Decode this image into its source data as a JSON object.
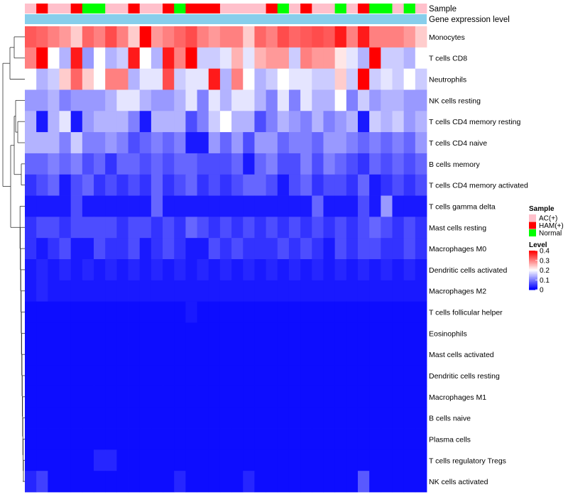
{
  "chart_data": {
    "type": "heatmap",
    "title": "",
    "annotation_labels": {
      "sample": "Sample",
      "gene": "Gene expression level"
    },
    "sample_legend": {
      "title": "Sample",
      "entries": [
        {
          "label": "AC(+)",
          "color": "#FFC0CB"
        },
        {
          "label": "HAM(+)",
          "color": "#FF0000"
        },
        {
          "label": "Normal",
          "color": "#00FF00"
        }
      ]
    },
    "level_legend": {
      "title": "Level",
      "ticks": [
        0.4,
        0.3,
        0.2,
        0.1,
        0
      ],
      "tick_labels": [
        "0.4",
        "0.3",
        "0.2",
        "0.1",
        "0"
      ],
      "min": 0,
      "max": 0.4
    },
    "colors": {
      "low": "#0000FF",
      "mid": "#FFFFFF",
      "high": "#FF0000",
      "gene_band": "#87CEEB"
    },
    "sample_groups": [
      "AC(+)",
      "HAM(+)",
      "AC(+)",
      "AC(+)",
      "HAM(+)",
      "Normal",
      "Normal",
      "AC(+)",
      "AC(+)",
      "HAM(+)",
      "AC(+)",
      "AC(+)",
      "HAM(+)",
      "Normal",
      "HAM(+)",
      "HAM(+)",
      "HAM(+)",
      "AC(+)",
      "AC(+)",
      "AC(+)",
      "AC(+)",
      "HAM(+)",
      "Normal",
      "AC(+)",
      "HAM(+)",
      "AC(+)",
      "AC(+)",
      "Normal",
      "AC(+)",
      "HAM(+)",
      "Normal",
      "Normal",
      "AC(+)",
      "Normal",
      "AC(+)"
    ],
    "rows": [
      {
        "name": "Monocytes",
        "values": [
          0.33,
          0.32,
          0.3,
          0.28,
          0.24,
          0.32,
          0.3,
          0.34,
          0.3,
          0.24,
          0.4,
          0.28,
          0.3,
          0.32,
          0.34,
          0.3,
          0.28,
          0.3,
          0.3,
          0.24,
          0.32,
          0.3,
          0.34,
          0.32,
          0.33,
          0.34,
          0.33,
          0.38,
          0.3,
          0.38,
          0.3,
          0.3,
          0.3,
          0.28,
          0.24
        ]
      },
      {
        "name": "T cells CD8",
        "values": [
          0.3,
          0.4,
          0.2,
          0.14,
          0.38,
          0.12,
          0.2,
          0.14,
          0.16,
          0.38,
          0.2,
          0.14,
          0.38,
          0.3,
          0.4,
          0.16,
          0.16,
          0.18,
          0.26,
          0.18,
          0.26,
          0.28,
          0.28,
          0.16,
          0.3,
          0.28,
          0.28,
          0.22,
          0.18,
          0.14,
          0.4,
          0.16,
          0.16,
          0.14,
          0.2
        ]
      },
      {
        "name": "Neutrophils",
        "values": [
          0.2,
          0.14,
          0.16,
          0.24,
          0.32,
          0.24,
          0.2,
          0.3,
          0.3,
          0.14,
          0.18,
          0.18,
          0.34,
          0.16,
          0.18,
          0.18,
          0.38,
          0.14,
          0.3,
          0.2,
          0.14,
          0.16,
          0.2,
          0.18,
          0.18,
          0.16,
          0.16,
          0.24,
          0.16,
          0.4,
          0.16,
          0.18,
          0.16,
          0.2,
          0.16
        ]
      },
      {
        "name": "NK cells resting",
        "values": [
          0.12,
          0.12,
          0.14,
          0.1,
          0.12,
          0.12,
          0.12,
          0.14,
          0.18,
          0.18,
          0.14,
          0.12,
          0.12,
          0.14,
          0.18,
          0.1,
          0.18,
          0.14,
          0.18,
          0.18,
          0.14,
          0.1,
          0.18,
          0.1,
          0.18,
          0.14,
          0.14,
          0.2,
          0.1,
          0.16,
          0.12,
          0.14,
          0.14,
          0.12,
          0.12
        ]
      },
      {
        "name": "T cells CD4 memory resting",
        "values": [
          0.14,
          0.02,
          0.14,
          0.18,
          0.02,
          0.12,
          0.14,
          0.14,
          0.14,
          0.1,
          0.02,
          0.14,
          0.14,
          0.14,
          0.06,
          0.1,
          0.16,
          0.2,
          0.14,
          0.14,
          0.06,
          0.1,
          0.14,
          0.12,
          0.1,
          0.14,
          0.1,
          0.12,
          0.14,
          0.02,
          0.16,
          0.14,
          0.16,
          0.12,
          0.14
        ]
      },
      {
        "name": "T cells CD4 naive",
        "values": [
          0.14,
          0.14,
          0.14,
          0.1,
          0.16,
          0.1,
          0.1,
          0.12,
          0.1,
          0.06,
          0.08,
          0.1,
          0.08,
          0.1,
          0.02,
          0.02,
          0.12,
          0.08,
          0.12,
          0.06,
          0.12,
          0.12,
          0.08,
          0.1,
          0.1,
          0.08,
          0.12,
          0.12,
          0.1,
          0.08,
          0.1,
          0.08,
          0.1,
          0.08,
          0.12
        ]
      },
      {
        "name": "B cells memory",
        "values": [
          0.08,
          0.08,
          0.1,
          0.08,
          0.1,
          0.06,
          0.08,
          0.04,
          0.08,
          0.08,
          0.06,
          0.08,
          0.06,
          0.08,
          0.08,
          0.06,
          0.06,
          0.06,
          0.08,
          0.02,
          0.08,
          0.1,
          0.06,
          0.06,
          0.1,
          0.06,
          0.1,
          0.08,
          0.06,
          0.04,
          0.08,
          0.06,
          0.08,
          0.06,
          0.08
        ]
      },
      {
        "name": "T cells CD4 memory activated",
        "values": [
          0.04,
          0.06,
          0.08,
          0.02,
          0.06,
          0.08,
          0.04,
          0.06,
          0.04,
          0.06,
          0.04,
          0.08,
          0.04,
          0.06,
          0.08,
          0.04,
          0.06,
          0.04,
          0.06,
          0.08,
          0.08,
          0.06,
          0.02,
          0.06,
          0.08,
          0.04,
          0.06,
          0.06,
          0.04,
          0.08,
          0.02,
          0.04,
          0.06,
          0.04,
          0.06
        ]
      },
      {
        "name": "T cells gamma delta",
        "values": [
          0.02,
          0.02,
          0.02,
          0.02,
          0.06,
          0.02,
          0.02,
          0.02,
          0.02,
          0.02,
          0.02,
          0.08,
          0.02,
          0.02,
          0.02,
          0.02,
          0.02,
          0.02,
          0.02,
          0.02,
          0.02,
          0.02,
          0.02,
          0.02,
          0.02,
          0.08,
          0.02,
          0.02,
          0.02,
          0.06,
          0.02,
          0.12,
          0.02,
          0.02,
          0.02
        ]
      },
      {
        "name": "Mast cells resting",
        "values": [
          0.04,
          0.06,
          0.06,
          0.04,
          0.06,
          0.06,
          0.06,
          0.06,
          0.04,
          0.06,
          0.06,
          0.04,
          0.06,
          0.04,
          0.08,
          0.06,
          0.04,
          0.06,
          0.04,
          0.06,
          0.04,
          0.06,
          0.04,
          0.06,
          0.04,
          0.06,
          0.04,
          0.06,
          0.04,
          0.06,
          0.08,
          0.06,
          0.04,
          0.06,
          0.04
        ]
      },
      {
        "name": "Macrophages M0",
        "values": [
          0.04,
          0.02,
          0.04,
          0.06,
          0.02,
          0.02,
          0.06,
          0.04,
          0.04,
          0.06,
          0.02,
          0.04,
          0.06,
          0.04,
          0.02,
          0.02,
          0.06,
          0.04,
          0.06,
          0.04,
          0.04,
          0.04,
          0.06,
          0.04,
          0.06,
          0.04,
          0.02,
          0.06,
          0.04,
          0.06,
          0.06,
          0.04,
          0.04,
          0.06,
          0.04
        ]
      },
      {
        "name": "Dendritic cells activated",
        "values": [
          0.02,
          0.03,
          0.02,
          0.03,
          0.02,
          0.03,
          0.02,
          0.03,
          0.02,
          0.03,
          0.02,
          0.03,
          0.02,
          0.03,
          0.02,
          0.03,
          0.02,
          0.03,
          0.02,
          0.03,
          0.02,
          0.03,
          0.02,
          0.03,
          0.02,
          0.03,
          0.02,
          0.03,
          0.02,
          0.03,
          0.02,
          0.03,
          0.02,
          0.03,
          0.02
        ]
      },
      {
        "name": "Macrophages M2",
        "values": [
          0.02,
          0.03,
          0.02,
          0.02,
          0.02,
          0.02,
          0.02,
          0.02,
          0.02,
          0.02,
          0.02,
          0.02,
          0.02,
          0.02,
          0.02,
          0.02,
          0.02,
          0.02,
          0.02,
          0.02,
          0.02,
          0.02,
          0.02,
          0.02,
          0.02,
          0.02,
          0.02,
          0.02,
          0.02,
          0.02,
          0.02,
          0.02,
          0.02,
          0.02,
          0.02
        ]
      },
      {
        "name": "T cells follicular helper",
        "values": [
          0.01,
          0.01,
          0.01,
          0.01,
          0.01,
          0.01,
          0.01,
          0.01,
          0.01,
          0.01,
          0.01,
          0.01,
          0.01,
          0.01,
          0.02,
          0.01,
          0.01,
          0.01,
          0.01,
          0.01,
          0.01,
          0.01,
          0.01,
          0.01,
          0.01,
          0.01,
          0.01,
          0.01,
          0.01,
          0.01,
          0.01,
          0.01,
          0.01,
          0.01,
          0.01
        ]
      },
      {
        "name": "Eosinophils",
        "values": [
          0.01,
          0.01,
          0.01,
          0.01,
          0.01,
          0.01,
          0.01,
          0.01,
          0.01,
          0.01,
          0.01,
          0.01,
          0.01,
          0.01,
          0.01,
          0.01,
          0.01,
          0.01,
          0.01,
          0.01,
          0.01,
          0.01,
          0.01,
          0.01,
          0.01,
          0.01,
          0.01,
          0.01,
          0.01,
          0.01,
          0.01,
          0.01,
          0.01,
          0.01,
          0.01
        ]
      },
      {
        "name": "Mast cells activated",
        "values": [
          0.01,
          0.01,
          0.01,
          0.01,
          0.01,
          0.01,
          0.01,
          0.01,
          0.01,
          0.01,
          0.01,
          0.01,
          0.01,
          0.01,
          0.01,
          0.01,
          0.01,
          0.01,
          0.01,
          0.01,
          0.01,
          0.01,
          0.01,
          0.01,
          0.01,
          0.01,
          0.01,
          0.01,
          0.01,
          0.01,
          0.01,
          0.01,
          0.01,
          0.01,
          0.01
        ]
      },
      {
        "name": "Dendritic cells resting",
        "values": [
          0.01,
          0.01,
          0.01,
          0.01,
          0.01,
          0.01,
          0.01,
          0.01,
          0.01,
          0.01,
          0.01,
          0.01,
          0.01,
          0.01,
          0.01,
          0.01,
          0.01,
          0.01,
          0.01,
          0.01,
          0.01,
          0.01,
          0.01,
          0.01,
          0.01,
          0.01,
          0.01,
          0.01,
          0.01,
          0.01,
          0.01,
          0.01,
          0.01,
          0.01,
          0.01
        ]
      },
      {
        "name": "Macrophages M1",
        "values": [
          0.01,
          0.01,
          0.01,
          0.01,
          0.01,
          0.01,
          0.01,
          0.01,
          0.01,
          0.01,
          0.01,
          0.01,
          0.01,
          0.01,
          0.01,
          0.01,
          0.01,
          0.01,
          0.01,
          0.01,
          0.01,
          0.01,
          0.01,
          0.01,
          0.01,
          0.01,
          0.01,
          0.01,
          0.01,
          0.01,
          0.01,
          0.01,
          0.01,
          0.01,
          0.01
        ]
      },
      {
        "name": "B cells naive",
        "values": [
          0.01,
          0.01,
          0.01,
          0.01,
          0.01,
          0.01,
          0.01,
          0.01,
          0.01,
          0.01,
          0.01,
          0.01,
          0.01,
          0.01,
          0.01,
          0.01,
          0.01,
          0.01,
          0.01,
          0.01,
          0.01,
          0.01,
          0.01,
          0.01,
          0.01,
          0.01,
          0.01,
          0.01,
          0.01,
          0.01,
          0.01,
          0.01,
          0.01,
          0.01,
          0.01
        ]
      },
      {
        "name": "Plasma cells",
        "values": [
          0.01,
          0.01,
          0.01,
          0.01,
          0.01,
          0.01,
          0.01,
          0.01,
          0.01,
          0.01,
          0.01,
          0.01,
          0.01,
          0.01,
          0.01,
          0.01,
          0.01,
          0.01,
          0.01,
          0.01,
          0.01,
          0.01,
          0.01,
          0.01,
          0.01,
          0.01,
          0.01,
          0.01,
          0.01,
          0.01,
          0.01,
          0.01,
          0.01,
          0.01,
          0.01
        ]
      },
      {
        "name": "T cells regulatory  Tregs",
        "values": [
          0.01,
          0.01,
          0.01,
          0.01,
          0.01,
          0.01,
          0.03,
          0.03,
          0.01,
          0.01,
          0.01,
          0.01,
          0.01,
          0.01,
          0.01,
          0.01,
          0.01,
          0.01,
          0.01,
          0.01,
          0.01,
          0.01,
          0.01,
          0.01,
          0.01,
          0.01,
          0.01,
          0.01,
          0.01,
          0.01,
          0.01,
          0.01,
          0.01,
          0.01,
          0.01
        ]
      },
      {
        "name": "NK cells activated",
        "values": [
          0.03,
          0.05,
          0.01,
          0.01,
          0.01,
          0.01,
          0.01,
          0.01,
          0.01,
          0.01,
          0.01,
          0.01,
          0.01,
          0.03,
          0.01,
          0.01,
          0.01,
          0.01,
          0.01,
          0.03,
          0.01,
          0.01,
          0.01,
          0.01,
          0.01,
          0.01,
          0.01,
          0.01,
          0.01,
          0.07,
          0.01,
          0.01,
          0.01,
          0.01,
          0.01
        ]
      }
    ]
  }
}
